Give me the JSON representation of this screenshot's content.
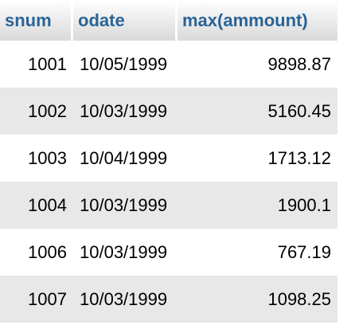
{
  "table": {
    "columns": [
      "snum",
      "odate",
      "max(ammount)"
    ],
    "rows": [
      [
        "1001",
        "10/05/1999",
        "9898.87"
      ],
      [
        "1002",
        "10/03/1999",
        "5160.45"
      ],
      [
        "1003",
        "10/04/1999",
        "1713.12"
      ],
      [
        "1004",
        "10/03/1999",
        "1900.1"
      ],
      [
        "1006",
        "10/03/1999",
        "767.19"
      ],
      [
        "1007",
        "10/03/1999",
        "1098.25"
      ]
    ]
  },
  "colors": {
    "header_text": "#2a6496",
    "row_alt_background": "#e8e8e8"
  }
}
